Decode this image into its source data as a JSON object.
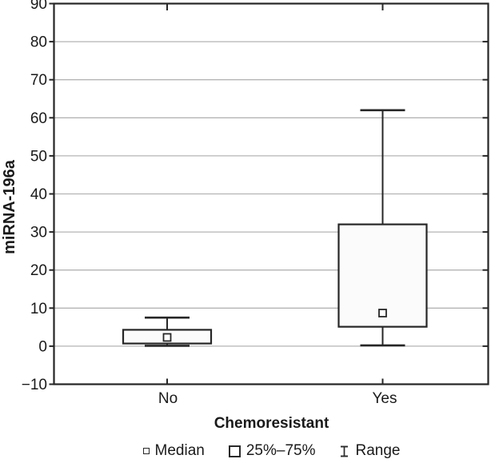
{
  "figure": {
    "background": "#ffffff",
    "text_color": "#1a1a1a",
    "axis_color": "#262626",
    "gridline_color": "#b4b4b4",
    "box_fill": "#fbfbfb"
  },
  "chart_data": {
    "type": "box",
    "title": "",
    "ylabel": "miRNA-196a",
    "xlabel": "Chemoresistant",
    "ylim": [
      -10,
      90
    ],
    "yticks": [
      90,
      80,
      70,
      60,
      50,
      40,
      30,
      20,
      10,
      0,
      -10
    ],
    "grid": "horizontal",
    "legend_position": "bottom",
    "categories": [
      "No",
      "Yes"
    ],
    "series": [
      {
        "category": "No",
        "min": 0.1,
        "q1": 0.7,
        "median": 2.3,
        "q3": 4.3,
        "max": 7.5
      },
      {
        "category": "Yes",
        "min": 0.2,
        "q1": 5.1,
        "median": 8.7,
        "q3": 32.0,
        "max": 62.0
      }
    ],
    "legend": [
      {
        "marker": "small-square",
        "label": "Median"
      },
      {
        "marker": "open-box",
        "label": "25%–75%"
      },
      {
        "marker": "whisker",
        "label": "Range"
      }
    ]
  }
}
